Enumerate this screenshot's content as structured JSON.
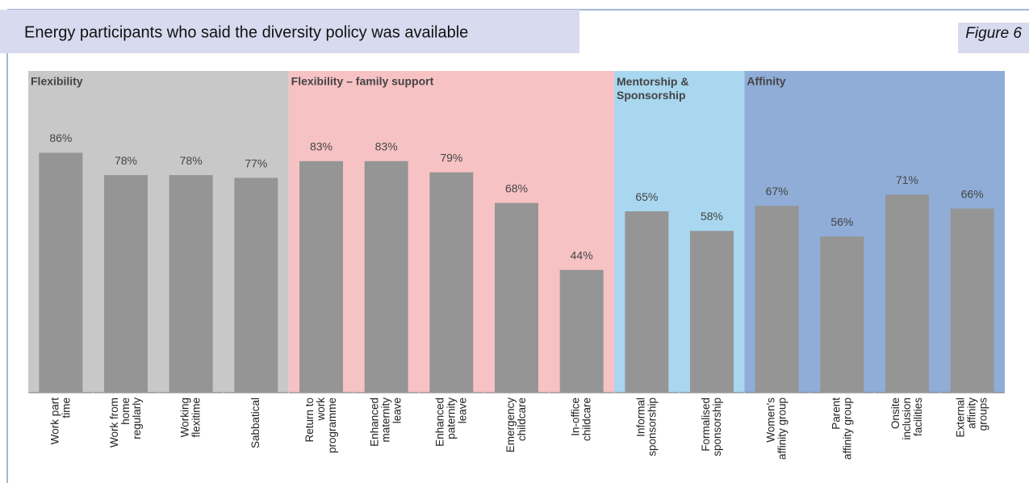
{
  "chart_data": {
    "type": "bar",
    "title": "Energy participants who said the diversity policy was available",
    "figure_label": "Figure 6",
    "categories": [
      "Work part\ntime",
      "Work from\nhome\nregularly",
      "Working\nflexitime",
      "Sabbatical",
      "Return to\nwork\nprogramme",
      "Enhanced\nmaternity\nleave",
      "Enhanced\npaternity\nleave",
      "Emergency\nchildcare",
      "In-office\nchildcare",
      "Informal\nsponsorship",
      "Formalised\nsponsorship",
      "Women's\naffinity group",
      "Parent\naffinity group",
      "Onsite\ninclusion\nfacilities",
      "External\naffinity\ngroups"
    ],
    "values": [
      86,
      78,
      78,
      77,
      83,
      83,
      79,
      68,
      44,
      65,
      58,
      67,
      56,
      71,
      66
    ],
    "value_labels": [
      "86%",
      "78%",
      "78%",
      "77%",
      "83%",
      "83%",
      "79%",
      "68%",
      "44%",
      "65%",
      "58%",
      "67%",
      "56%",
      "71%",
      "66%"
    ],
    "color": "#959595",
    "ylim": [
      0,
      100
    ],
    "groups": [
      {
        "name": "Flexibility",
        "color": "#c8c8c8",
        "count": 4
      },
      {
        "name": "Flexibility – family support",
        "color": "#f7c2c4",
        "count": 5
      },
      {
        "name": "Mentorship &\nSponsorship",
        "color": "#a9d7ef",
        "count": 2
      },
      {
        "name": "Affinity",
        "color": "#8fadd7",
        "count": 4
      }
    ]
  }
}
